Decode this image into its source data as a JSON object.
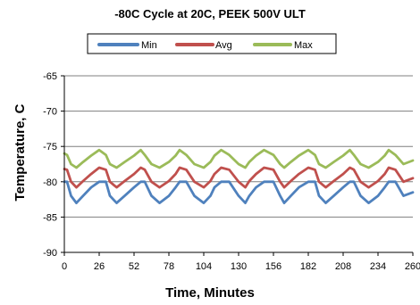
{
  "chart_data": {
    "type": "line",
    "title": "-80C Cycle at 20C, PEEK 500V ULT",
    "xlabel": "Time, Minutes",
    "ylabel": "Temperature, C",
    "xlim": [
      0,
      260
    ],
    "ylim": [
      -90,
      -65
    ],
    "x_ticks": [
      0,
      26,
      52,
      78,
      104,
      130,
      156,
      182,
      208,
      234,
      260
    ],
    "y_ticks": [
      -65,
      -70,
      -75,
      -80,
      -85,
      -90
    ],
    "grid": "horizontal",
    "legend_position": "top",
    "x": [
      0,
      2,
      5,
      9,
      14,
      20,
      26,
      31,
      34,
      39,
      45,
      52,
      57,
      60,
      65,
      71,
      78,
      83,
      86,
      91,
      97,
      104,
      109,
      112,
      117,
      123,
      130,
      135,
      138,
      143,
      149,
      156,
      161,
      164,
      169,
      175,
      182,
      187,
      190,
      195,
      201,
      208,
      213,
      216,
      221,
      227,
      234,
      239,
      242,
      247,
      253,
      260
    ],
    "series": [
      {
        "name": "Min",
        "color": "#4f81bd",
        "values": [
          -80.0,
          -80.0,
          -82.0,
          -83.0,
          -82.0,
          -80.8,
          -80.0,
          -80.0,
          -82.0,
          -83.0,
          -82.0,
          -80.8,
          -80.0,
          -80.0,
          -82.0,
          -83.0,
          -82.0,
          -80.8,
          -80.0,
          -80.0,
          -82.0,
          -83.0,
          -82.0,
          -80.8,
          -80.0,
          -80.0,
          -82.0,
          -83.0,
          -82.0,
          -80.8,
          -80.0,
          -80.0,
          -82.0,
          -83.0,
          -82.0,
          -80.8,
          -80.0,
          -80.0,
          -82.0,
          -83.0,
          -82.0,
          -80.8,
          -80.0,
          -80.0,
          -82.0,
          -83.0,
          -82.0,
          -80.8,
          -80.0,
          -80.0,
          -82.0,
          -81.5
        ]
      },
      {
        "name": "Avg",
        "color": "#c0504d",
        "values": [
          -78.2,
          -78.3,
          -80.0,
          -80.8,
          -79.9,
          -78.9,
          -78.0,
          -78.3,
          -80.0,
          -80.8,
          -79.9,
          -78.9,
          -78.0,
          -78.3,
          -80.0,
          -80.8,
          -79.9,
          -78.9,
          -78.0,
          -78.3,
          -80.0,
          -80.8,
          -79.9,
          -78.9,
          -78.0,
          -78.3,
          -80.0,
          -80.8,
          -79.9,
          -78.9,
          -78.0,
          -78.3,
          -80.0,
          -80.8,
          -79.9,
          -78.9,
          -78.0,
          -78.3,
          -80.0,
          -80.8,
          -79.9,
          -78.9,
          -78.0,
          -78.3,
          -80.0,
          -80.8,
          -79.9,
          -78.9,
          -78.0,
          -78.3,
          -80.0,
          -79.5
        ]
      },
      {
        "name": "Max",
        "color": "#9bbb59",
        "values": [
          -76.0,
          -76.2,
          -77.5,
          -78.0,
          -77.2,
          -76.3,
          -75.5,
          -76.2,
          -77.5,
          -78.0,
          -77.2,
          -76.3,
          -75.5,
          -76.2,
          -77.5,
          -78.0,
          -77.2,
          -76.3,
          -75.5,
          -76.2,
          -77.5,
          -78.0,
          -77.2,
          -76.3,
          -75.5,
          -76.2,
          -77.5,
          -78.0,
          -77.2,
          -76.3,
          -75.5,
          -76.2,
          -77.5,
          -78.0,
          -77.2,
          -76.3,
          -75.5,
          -76.2,
          -77.5,
          -78.0,
          -77.2,
          -76.3,
          -75.5,
          -76.2,
          -77.5,
          -78.0,
          -77.2,
          -76.3,
          -75.5,
          -76.2,
          -77.5,
          -77.0
        ]
      }
    ]
  }
}
